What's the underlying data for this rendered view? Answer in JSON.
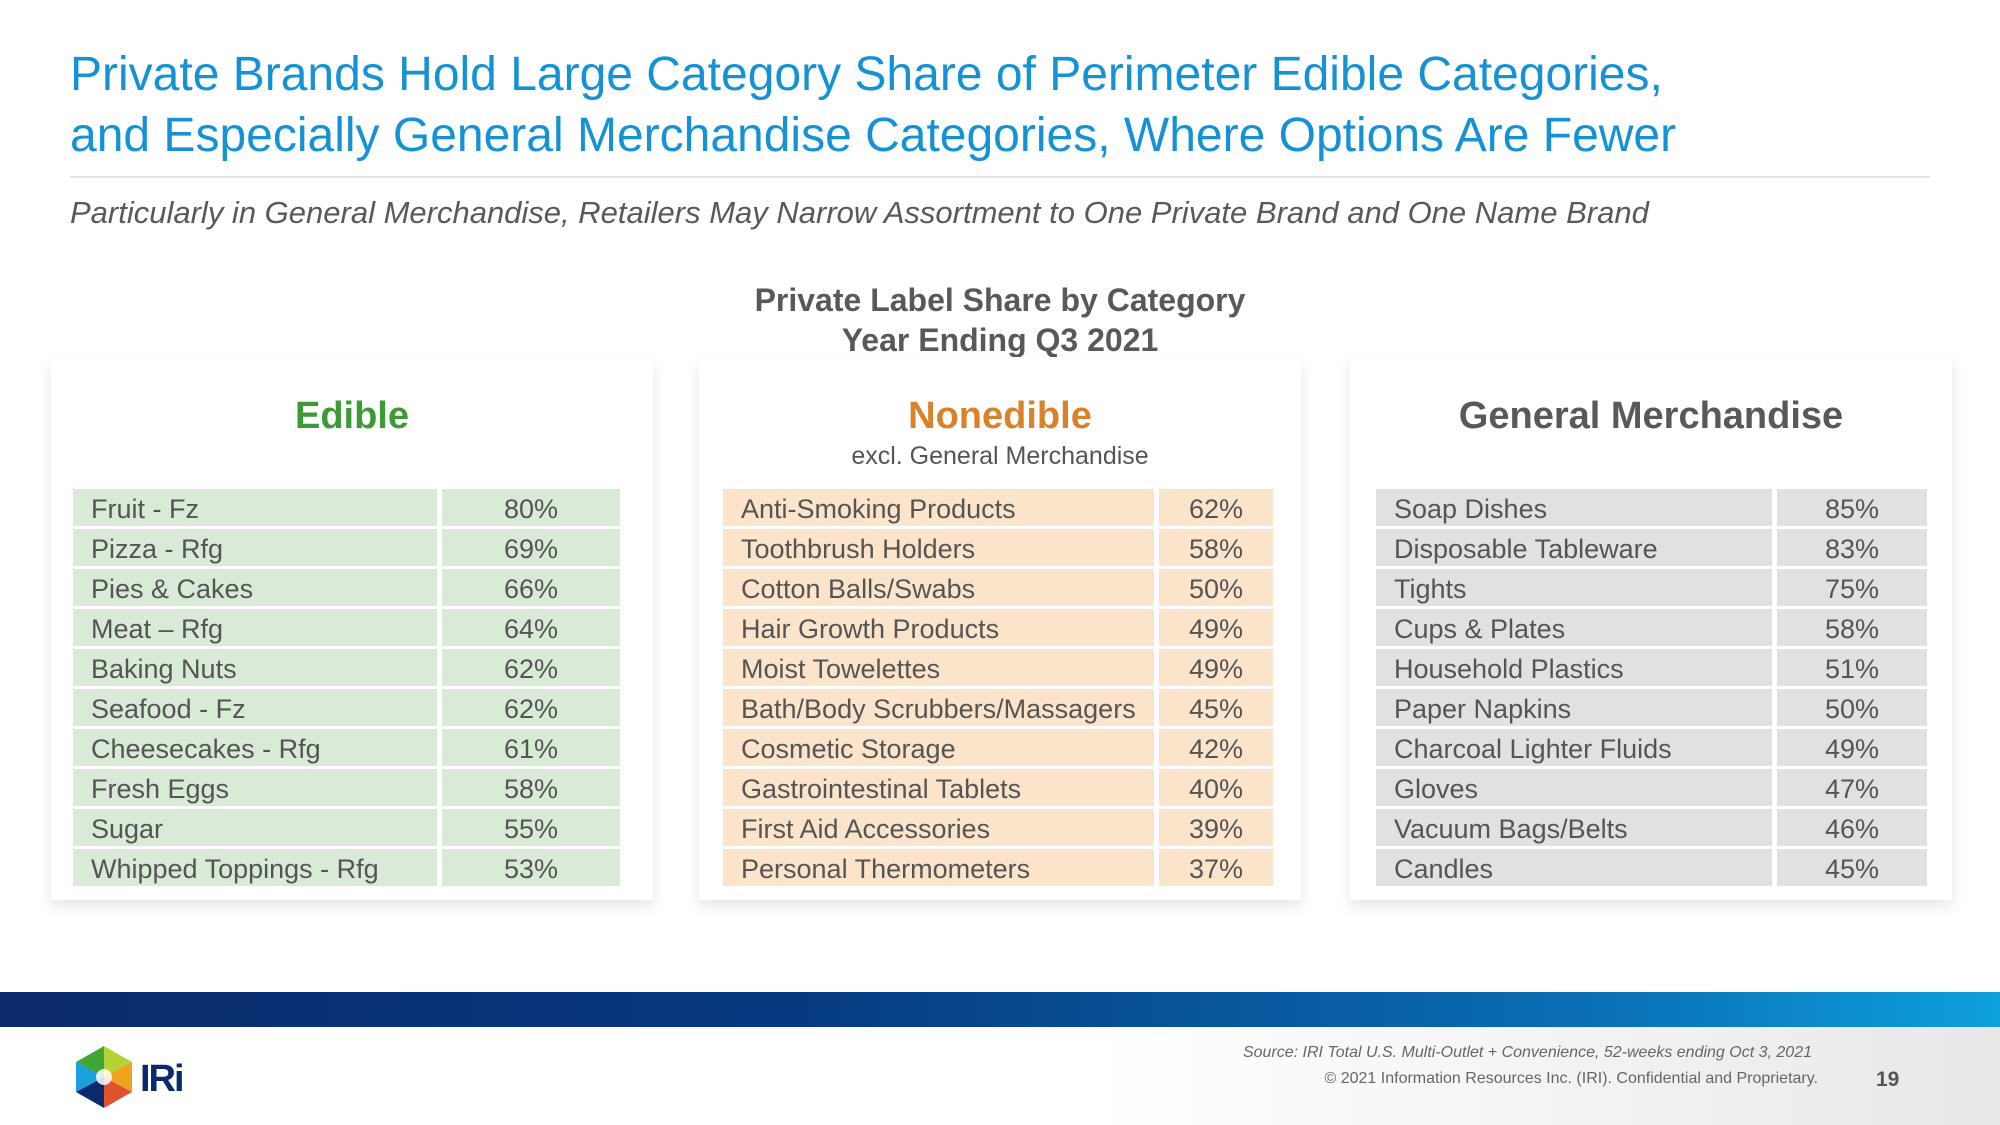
{
  "title": {
    "line1": "Private Brands Hold Large Category Share of Perimeter Edible Categories,",
    "line2": "and Especially General Merchandise Categories, Where Options Are Fewer"
  },
  "subtitle": "Particularly in General Merchandise, Retailers May Narrow Assortment to One Private Brand and One Name Brand",
  "chart_title": {
    "line1": "Private Label Share by Category",
    "line2": "Year Ending Q3 2021"
  },
  "colors": {
    "title": "#1592d6",
    "edible": "#3d9b35",
    "edible_row": "#d9ead7",
    "nonedible": "#d9822b",
    "nonedible_row": "#fbe4c9",
    "gm": "#595959",
    "gm_row": "#e1e1e1"
  },
  "chart_data": [
    {
      "type": "table",
      "title": "Edible",
      "subtitle": "",
      "rows": [
        {
          "name": "Fruit - Fz",
          "value": "80%"
        },
        {
          "name": "Pizza - Rfg",
          "value": "69%"
        },
        {
          "name": "Pies & Cakes",
          "value": "66%"
        },
        {
          "name": "Meat – Rfg",
          "value": "64%"
        },
        {
          "name": "Baking Nuts",
          "value": "62%"
        },
        {
          "name": "Seafood - Fz",
          "value": "62%"
        },
        {
          "name": "Cheesecakes - Rfg",
          "value": "61%"
        },
        {
          "name": "Fresh Eggs",
          "value": "58%"
        },
        {
          "name": "Sugar",
          "value": "55%"
        },
        {
          "name": "Whipped Toppings - Rfg",
          "value": "53%"
        }
      ]
    },
    {
      "type": "table",
      "title": "Nonedible",
      "subtitle": "excl. General Merchandise",
      "rows": [
        {
          "name": "Anti-Smoking Products",
          "value": "62%"
        },
        {
          "name": "Toothbrush Holders",
          "value": "58%"
        },
        {
          "name": "Cotton Balls/Swabs",
          "value": "50%"
        },
        {
          "name": "Hair Growth Products",
          "value": "49%"
        },
        {
          "name": "Moist Towelettes",
          "value": "49%"
        },
        {
          "name": "Bath/Body Scrubbers/Massagers",
          "value": "45%"
        },
        {
          "name": "Cosmetic Storage",
          "value": "42%"
        },
        {
          "name": "Gastrointestinal Tablets",
          "value": "40%"
        },
        {
          "name": "First Aid Accessories",
          "value": "39%"
        },
        {
          "name": "Personal Thermometers",
          "value": "37%"
        }
      ]
    },
    {
      "type": "table",
      "title": "General Merchandise",
      "subtitle": "",
      "rows": [
        {
          "name": "Soap Dishes",
          "value": "85%"
        },
        {
          "name": "Disposable Tableware",
          "value": "83%"
        },
        {
          "name": "Tights",
          "value": "75%"
        },
        {
          "name": "Cups & Plates",
          "value": "58%"
        },
        {
          "name": "Household Plastics",
          "value": "51%"
        },
        {
          "name": "Paper Napkins",
          "value": "50%"
        },
        {
          "name": "Charcoal Lighter Fluids",
          "value": "49%"
        },
        {
          "name": "Gloves",
          "value": "47%"
        },
        {
          "name": "Vacuum Bags/Belts",
          "value": "46%"
        },
        {
          "name": "Candles",
          "value": "45%"
        }
      ]
    }
  ],
  "footer": {
    "source": "Source: IRI Total U.S. Multi-Outlet + Convenience, 52-weeks ending Oct 3, 2021",
    "copyright": "© 2021 Information Resources Inc. (IRI). Confidential and Proprietary.",
    "page": "19",
    "logo_text": "IRi"
  }
}
